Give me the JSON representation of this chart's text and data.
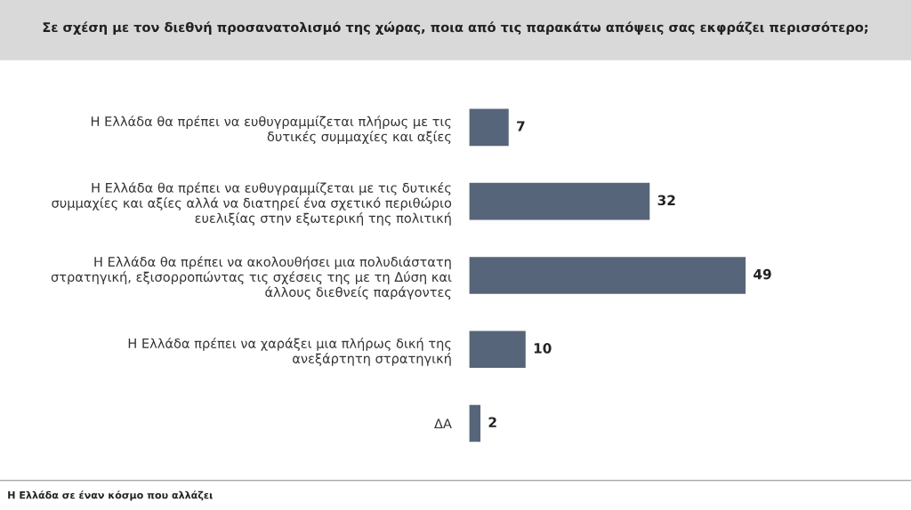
{
  "chart_data": {
    "type": "bar",
    "orientation": "horizontal",
    "title": "Σε σχέση με τον διεθνή προσανατολισμό της χώρας, ποια από τις παρακάτω απόψεις σας εκφράζει περισσότερο;",
    "categories": [
      "Η Ελλάδα θα πρέπει να ευθυγραμμίζεται πλήρως με τις\nδυτικές συμμαχίες και αξίες",
      "Η Ελλάδα θα πρέπει να ευθυγραμμίζεται με τις δυτικές\nσυμμαχίες και αξίες αλλά να διατηρεί ένα σχετικό περιθώριο\nευελιξίας στην εξωτερική της πολιτική",
      "Η Ελλάδα θα πρέπει να ακολουθήσει μια πολυδιάστατη\nστρατηγική, εξισορροπώντας τις σχέσεις της με τη Δύση και\nάλλους διεθνείς παράγοντες",
      "Η Ελλάδα πρέπει να χαράξει μια πλήρως δική της\nανεξάρτητη στρατηγική",
      "ΔΑ"
    ],
    "values": [
      7,
      32,
      49,
      10,
      2
    ],
    "color": "#566579",
    "data_labels": true,
    "annotations": [
      "Η Ελλάδα σε έναν κόσμο που αλλάζει"
    ]
  }
}
